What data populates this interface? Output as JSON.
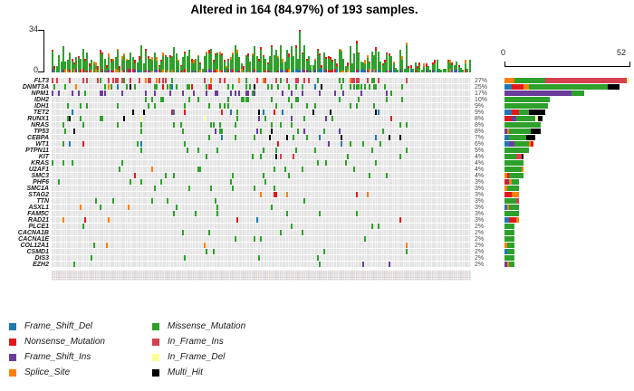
{
  "title": "Altered in 164 (84.97%) of 193 samples.",
  "top_axis": {
    "max_label": "34",
    "min_label": "0",
    "max": 34
  },
  "right_axis": {
    "min_label": "0",
    "max_label": "52",
    "max": 52
  },
  "legend": [
    {
      "name": "Frame_Shift_Del",
      "color": "#1F78B4"
    },
    {
      "name": "Nonsense_Mutation",
      "color": "#E2191C"
    },
    {
      "name": "Frame_Shift_Ins",
      "color": "#6A3D9A"
    },
    {
      "name": "Splice_Site",
      "color": "#FF7F00"
    },
    {
      "name": "Missense_Mutation",
      "color": "#2EA02C"
    },
    {
      "name": "In_Frame_Ins",
      "color": "#D6404E"
    },
    {
      "name": "In_Frame_Del",
      "color": "#FFFF99"
    },
    {
      "name": "Multi_Hit",
      "color": "#000000"
    }
  ],
  "chart_data": {
    "type": "heatmap",
    "subtype": "oncoprint-waterfall",
    "samples_total": 193,
    "samples_altered": 164,
    "pct_altered": "84.97%",
    "top_bar": {
      "ylim": [
        0,
        34
      ],
      "description": "per-sample mutation burden stacked by variant classification"
    },
    "right_bar": {
      "xlim": [
        0,
        52
      ],
      "description": "per-gene sample counts stacked by variant classification"
    },
    "background_cell_color": "#E4E4E4",
    "genes": [
      {
        "name": "FLT3",
        "pct": "27%",
        "count": 52,
        "segments": [
          [
            "Splice_Site",
            4
          ],
          [
            "Missense_Mutation",
            13
          ],
          [
            "In_Frame_Ins",
            34
          ],
          [
            "In_Frame_Del",
            1
          ]
        ]
      },
      {
        "name": "DNMT3A",
        "pct": "25%",
        "count": 48,
        "segments": [
          [
            "Frame_Shift_Del",
            3
          ],
          [
            "Nonsense_Mutation",
            5
          ],
          [
            "Splice_Site",
            2
          ],
          [
            "Missense_Mutation",
            33
          ],
          [
            "Multi_Hit",
            5
          ]
        ]
      },
      {
        "name": "NPM1",
        "pct": "17%",
        "count": 33,
        "segments": [
          [
            "Frame_Shift_Ins",
            28
          ],
          [
            "Missense_Mutation",
            5
          ]
        ]
      },
      {
        "name": "IDH2",
        "pct": "10%",
        "count": 19,
        "segments": [
          [
            "Missense_Mutation",
            19
          ]
        ]
      },
      {
        "name": "IDH1",
        "pct": "9%",
        "count": 18,
        "segments": [
          [
            "Missense_Mutation",
            18
          ]
        ]
      },
      {
        "name": "TET2",
        "pct": "9%",
        "count": 17,
        "segments": [
          [
            "Frame_Shift_Del",
            3
          ],
          [
            "Nonsense_Mutation",
            3
          ],
          [
            "Missense_Mutation",
            4
          ],
          [
            "Multi_Hit",
            7
          ]
        ]
      },
      {
        "name": "RUNX1",
        "pct": "8%",
        "count": 16,
        "segments": [
          [
            "Nonsense_Mutation",
            3
          ],
          [
            "Frame_Shift_Ins",
            2
          ],
          [
            "Missense_Mutation",
            8
          ],
          [
            "In_Frame_Del",
            1
          ],
          [
            "Multi_Hit",
            2
          ]
        ]
      },
      {
        "name": "NRAS",
        "pct": "8%",
        "count": 15,
        "segments": [
          [
            "Missense_Mutation",
            15
          ]
        ]
      },
      {
        "name": "TP53",
        "pct": "8%",
        "count": 15,
        "segments": [
          [
            "Frame_Shift_Ins",
            1
          ],
          [
            "Splice_Site",
            1
          ],
          [
            "Missense_Mutation",
            9
          ],
          [
            "Multi_Hit",
            4
          ]
        ]
      },
      {
        "name": "CEBPA",
        "pct": "7%",
        "count": 13,
        "segments": [
          [
            "Frame_Shift_Del",
            2
          ],
          [
            "Missense_Mutation",
            7
          ],
          [
            "Multi_Hit",
            4
          ]
        ]
      },
      {
        "name": "WT1",
        "pct": "6%",
        "count": 12,
        "segments": [
          [
            "Frame_Shift_Del",
            2
          ],
          [
            "Frame_Shift_Ins",
            2
          ],
          [
            "Missense_Mutation",
            6
          ],
          [
            "Splice_Site",
            1
          ],
          [
            "Nonsense_Mutation",
            1
          ]
        ]
      },
      {
        "name": "PTPN11",
        "pct": "5%",
        "count": 10,
        "segments": [
          [
            "Missense_Mutation",
            10
          ]
        ]
      },
      {
        "name": "KIT",
        "pct": "4%",
        "count": 8,
        "segments": [
          [
            "Missense_Mutation",
            5
          ],
          [
            "In_Frame_Ins",
            2
          ],
          [
            "Multi_Hit",
            1
          ]
        ]
      },
      {
        "name": "KRAS",
        "pct": "4%",
        "count": 8,
        "segments": [
          [
            "Missense_Mutation",
            8
          ]
        ]
      },
      {
        "name": "U2AF1",
        "pct": "4%",
        "count": 8,
        "segments": [
          [
            "Missense_Mutation",
            7
          ],
          [
            "Splice_Site",
            1
          ]
        ]
      },
      {
        "name": "SMC3",
        "pct": "4%",
        "count": 8,
        "segments": [
          [
            "Splice_Site",
            1
          ],
          [
            "Nonsense_Mutation",
            1
          ],
          [
            "Missense_Mutation",
            6
          ]
        ]
      },
      {
        "name": "PHF6",
        "pct": "3%",
        "count": 6,
        "segments": [
          [
            "Nonsense_Mutation",
            1
          ],
          [
            "Frame_Shift_Ins",
            1
          ],
          [
            "Splice_Site",
            1
          ],
          [
            "Missense_Mutation",
            3
          ]
        ]
      },
      {
        "name": "SMC1A",
        "pct": "3%",
        "count": 6,
        "segments": [
          [
            "Splice_Site",
            1
          ],
          [
            "Missense_Mutation",
            5
          ]
        ]
      },
      {
        "name": "STAG2",
        "pct": "3%",
        "count": 6,
        "segments": [
          [
            "Nonsense_Mutation",
            3
          ],
          [
            "Splice_Site",
            3
          ]
        ]
      },
      {
        "name": "TTN",
        "pct": "3%",
        "count": 6,
        "segments": [
          [
            "Missense_Mutation",
            5
          ],
          [
            "In_Frame_Ins",
            1
          ]
        ]
      },
      {
        "name": "ASXL1",
        "pct": "3%",
        "count": 6,
        "segments": [
          [
            "Frame_Shift_Del",
            1
          ],
          [
            "Splice_Site",
            1
          ],
          [
            "Missense_Mutation",
            4
          ]
        ]
      },
      {
        "name": "FAM5C",
        "pct": "3%",
        "count": 6,
        "segments": [
          [
            "Missense_Mutation",
            6
          ]
        ]
      },
      {
        "name": "RAD21",
        "pct": "3%",
        "count": 6,
        "segments": [
          [
            "Frame_Shift_Del",
            2
          ],
          [
            "Nonsense_Mutation",
            3
          ],
          [
            "Splice_Site",
            1
          ]
        ]
      },
      {
        "name": "PLCE1",
        "pct": "2%",
        "count": 4,
        "segments": [
          [
            "Missense_Mutation",
            4
          ]
        ]
      },
      {
        "name": "CACNA1B",
        "pct": "2%",
        "count": 4,
        "segments": [
          [
            "Missense_Mutation",
            4
          ]
        ]
      },
      {
        "name": "CACNA1E",
        "pct": "2%",
        "count": 4,
        "segments": [
          [
            "Missense_Mutation",
            4
          ]
        ]
      },
      {
        "name": "COL12A1",
        "pct": "2%",
        "count": 4,
        "segments": [
          [
            "Splice_Site",
            1
          ],
          [
            "Missense_Mutation",
            3
          ]
        ]
      },
      {
        "name": "CSMD1",
        "pct": "2%",
        "count": 4,
        "segments": [
          [
            "Frame_Shift_Del",
            1
          ],
          [
            "Missense_Mutation",
            3
          ]
        ]
      },
      {
        "name": "DIS3",
        "pct": "2%",
        "count": 4,
        "segments": [
          [
            "Missense_Mutation",
            4
          ]
        ]
      },
      {
        "name": "EZH2",
        "pct": "2%",
        "count": 4,
        "segments": [
          [
            "Frame_Shift_Ins",
            1
          ],
          [
            "Splice_Site",
            1
          ],
          [
            "Missense_Mutation",
            2
          ]
        ]
      }
    ]
  }
}
